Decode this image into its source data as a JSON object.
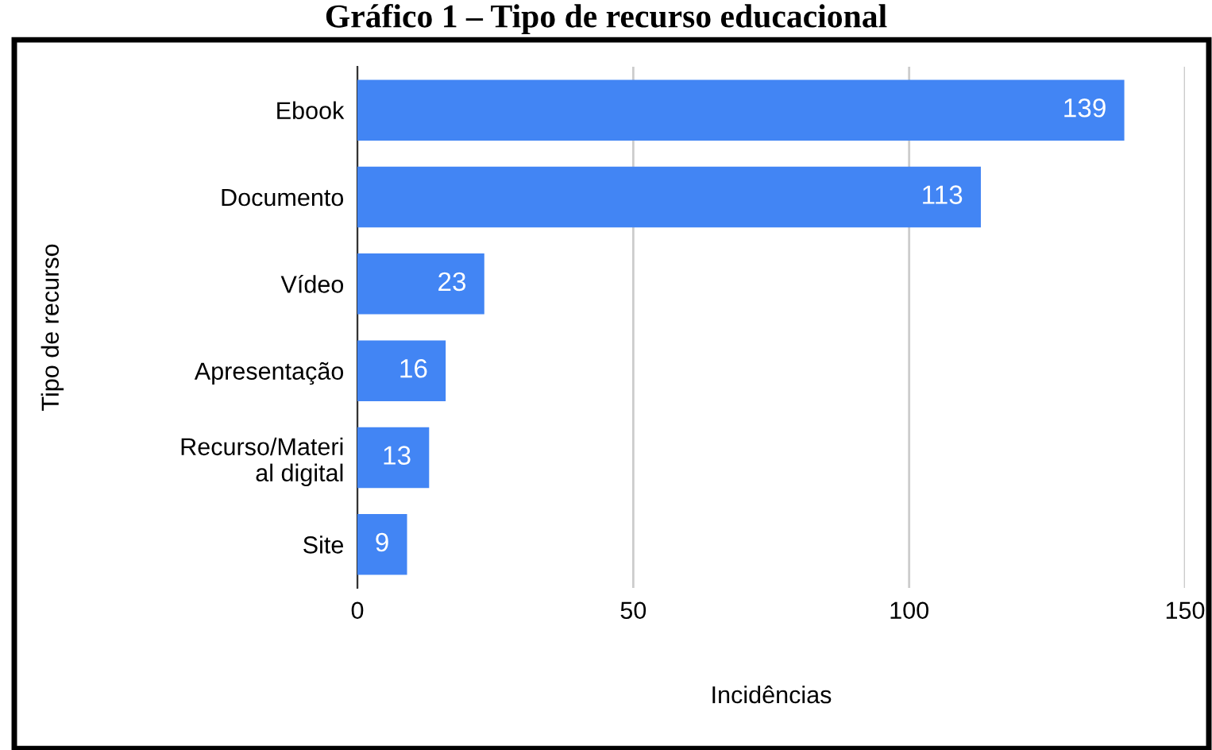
{
  "chart_data": {
    "type": "bar",
    "orientation": "horizontal",
    "title": "Gráfico 1 – Tipo de recurso educacional",
    "categories": [
      "Ebook",
      "Documento",
      "Vídeo",
      "Apresentação",
      "Recurso/Materi\nal digital",
      "Site"
    ],
    "values": [
      139,
      113,
      23,
      16,
      13,
      9
    ],
    "color": "#4285f4",
    "xlim": [
      0,
      150
    ],
    "xticks": [
      0,
      50,
      100,
      150
    ],
    "grid": "x",
    "data_labels": true,
    "xlabel": "Incidências",
    "ylabel": "Tipo de recurso"
  }
}
